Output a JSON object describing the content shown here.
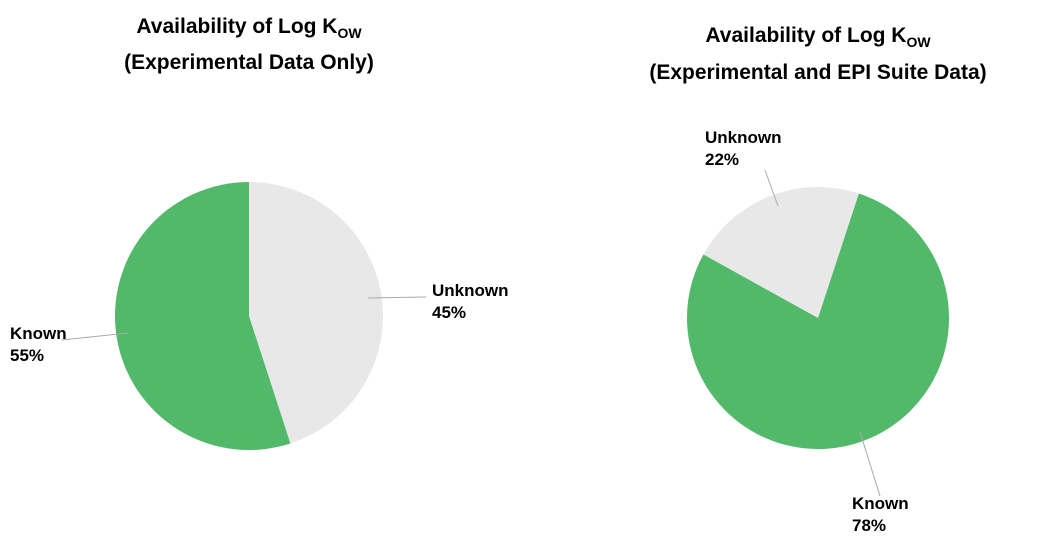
{
  "chart_data": [
    {
      "type": "pie",
      "title": "Availability of Log K",
      "title_subscript": "OW",
      "subtitle": "(Experimental Data Only)",
      "categories": [
        "Unknown",
        "Known"
      ],
      "values": [
        45,
        55
      ],
      "value_labels": [
        "45%",
        "55%"
      ],
      "colors": [
        "#e8e8e8",
        "#52b96a"
      ]
    },
    {
      "type": "pie",
      "title": "Availability of Log K",
      "title_subscript": "OW",
      "subtitle": "(Experimental and EPI Suite Data)",
      "categories": [
        "Unknown",
        "Known"
      ],
      "values": [
        22,
        78
      ],
      "value_labels": [
        "22%",
        "78%"
      ],
      "colors": [
        "#e8e8e8",
        "#52b96a"
      ]
    }
  ]
}
